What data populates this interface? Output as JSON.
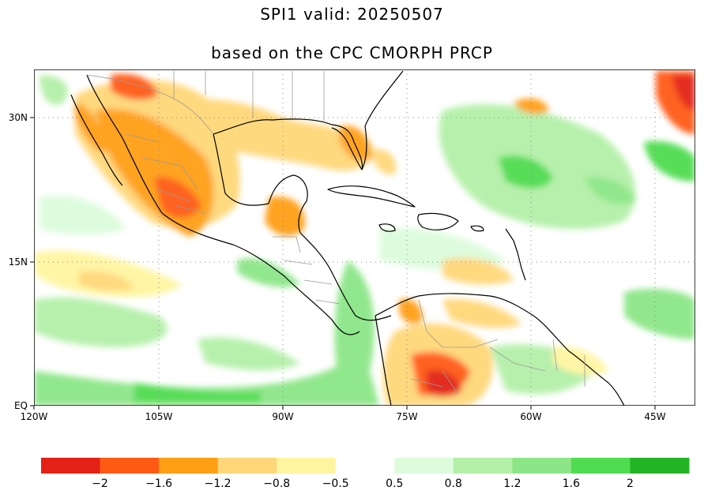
{
  "title": {
    "line1": "SPI1   valid: 20250507",
    "line2": "based on the CPC CMORPH PRCP"
  },
  "map": {
    "lat_labels": [
      "30N",
      "15N",
      "EQ"
    ],
    "lon_labels": [
      "120W",
      "105W",
      "90W",
      "75W",
      "60W",
      "45W"
    ],
    "grid": "dotted",
    "region": "Gulf of Mexico, Central America, Caribbean, northern South America"
  },
  "legend": {
    "bins": [
      {
        "color": "#e32114"
      },
      {
        "color": "#ff5a14"
      },
      {
        "color": "#ff9f14"
      },
      {
        "color": "#ffd778"
      },
      {
        "color": "#fff5a0"
      },
      {
        "color": "#ffffff"
      },
      {
        "color": "#dcfcdc"
      },
      {
        "color": "#b4f0a8"
      },
      {
        "color": "#8ce687"
      },
      {
        "color": "#50dc50"
      },
      {
        "color": "#23b423"
      }
    ],
    "tick_labels": [
      "−2",
      "−1.6",
      "−1.2",
      "−0.8",
      "−0.5",
      "0.5",
      "0.8",
      "1.2",
      "1.6",
      "2"
    ]
  }
}
